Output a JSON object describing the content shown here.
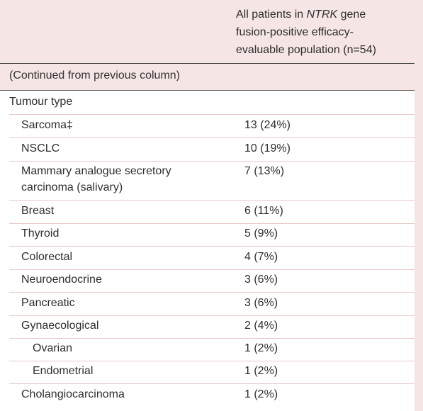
{
  "header": {
    "col_line1_pre": "All patients in ",
    "col_line1_em": "NTRK",
    "col_line1_post": " gene",
    "col_line2": "fusion-positive efficacy-",
    "col_line3": "evaluable population (n=54)"
  },
  "continued_text": "(Continued from previous column)",
  "section_title": "Tumour type",
  "rows": [
    {
      "label": "Sarcoma‡",
      "value": "13 (24%)"
    },
    {
      "label": "NSCLC",
      "value": "10 (19%)"
    },
    {
      "label_line1": "Mammary analogue secretory",
      "label_line2": "carcinoma (salivary)",
      "value": "7 (13%)"
    },
    {
      "label": "Breast",
      "value": "6 (11%)"
    },
    {
      "label": "Thyroid",
      "value": "5 (9%)"
    },
    {
      "label": "Colorectal",
      "value": "4 (7%)"
    },
    {
      "label": "Neuroendocrine",
      "value": "3 (6%)"
    },
    {
      "label": "Pancreatic",
      "value": "3 (6%)"
    },
    {
      "label": "Gynaecological",
      "value": "2 (4%)"
    },
    {
      "label": "Ovarian",
      "value": "1 (2%)"
    },
    {
      "label": "Endometrial",
      "value": "1 (2%)"
    },
    {
      "label": "Cholangiocarcinoma",
      "value": "1 (2%)"
    }
  ],
  "colors": {
    "background_pink": "#f6e5e5",
    "table_white": "#ffffff",
    "separator_pink": "#e7c9c9",
    "rule_dark": "#3a3a3a"
  }
}
